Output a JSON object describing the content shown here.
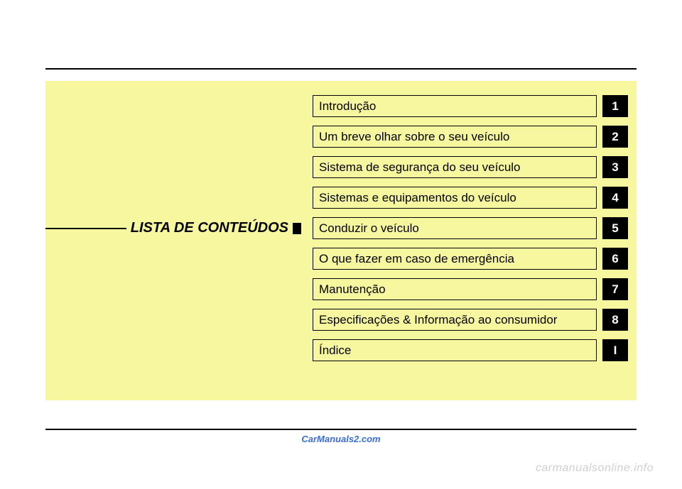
{
  "heading": "LISTA DE CONTEÚDOS",
  "toc": [
    {
      "label": "Introdução",
      "num": "1"
    },
    {
      "label": "Um breve olhar sobre o seu veículo",
      "num": "2"
    },
    {
      "label": "Sistema de segurança do seu veículo",
      "num": "3"
    },
    {
      "label": "Sistemas e equipamentos do veículo",
      "num": "4"
    },
    {
      "label": "Conduzir o veículo",
      "num": "5"
    },
    {
      "label": "O que fazer em caso de emergência",
      "num": "6"
    },
    {
      "label": "Manutenção",
      "num": "7"
    },
    {
      "label": "Especificações & Informação ao consumidor",
      "num": "8"
    },
    {
      "label": "Índice",
      "num": "I"
    }
  ],
  "watermarks": {
    "center": "CarManuals2.com",
    "corner": "carmanualsonline.info"
  },
  "colors": {
    "panel_bg": "#f7f7a0",
    "border": "#000000",
    "tab_bg": "#000000",
    "tab_fg": "#ffffff",
    "watermark_center": "#3a6fd8",
    "watermark_corner": "#d0d0d0"
  }
}
